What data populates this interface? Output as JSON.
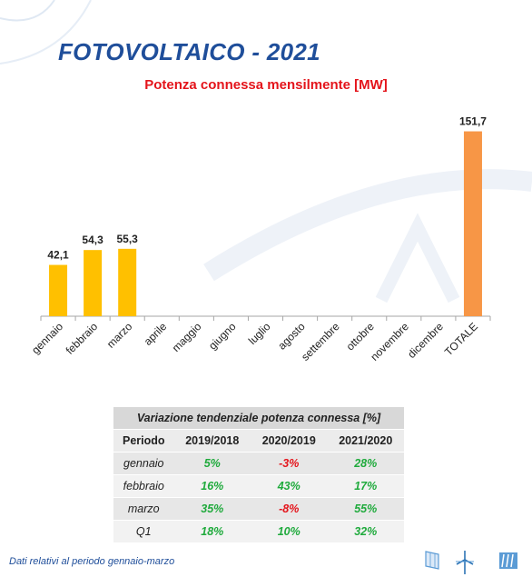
{
  "title": "FOTOVOLTAICO - 2021",
  "subtitle": "Potenza connessa mensilmente [MW]",
  "chart_data": {
    "type": "bar",
    "title": "Potenza connessa mensilmente [MW]",
    "categories": [
      "gennaio",
      "febbraio",
      "marzo",
      "aprile",
      "maggio",
      "giugno",
      "luglio",
      "agosto",
      "settembre",
      "ottobre",
      "novembre",
      "dicembre",
      "TOTALE"
    ],
    "values": [
      42.1,
      54.3,
      55.3,
      null,
      null,
      null,
      null,
      null,
      null,
      null,
      null,
      null,
      151.7
    ],
    "value_labels": [
      "42,1",
      "54,3",
      "55,3",
      "",
      "",
      "",
      "",
      "",
      "",
      "",
      "",
      "",
      "151,7"
    ],
    "ylim": [
      0,
      170
    ],
    "grid": false,
    "legend": "none",
    "colors": {
      "month": "#ffc000",
      "total": "#f79646"
    }
  },
  "table": {
    "caption": "Variazione tendenziale potenza connessa [%]",
    "headers": [
      "Periodo",
      "2019/2018",
      "2020/2019",
      "2021/2020"
    ],
    "rows": [
      {
        "period": "gennaio",
        "values": [
          {
            "text": "5%",
            "sign": "pos"
          },
          {
            "text": "-3%",
            "sign": "neg"
          },
          {
            "text": "28%",
            "sign": "pos"
          }
        ]
      },
      {
        "period": "febbraio",
        "values": [
          {
            "text": "16%",
            "sign": "pos"
          },
          {
            "text": "43%",
            "sign": "pos"
          },
          {
            "text": "17%",
            "sign": "pos"
          }
        ]
      },
      {
        "period": "marzo",
        "values": [
          {
            "text": "35%",
            "sign": "pos"
          },
          {
            "text": "-8%",
            "sign": "neg"
          },
          {
            "text": "55%",
            "sign": "pos"
          }
        ]
      },
      {
        "period": "Q1",
        "values": [
          {
            "text": "18%",
            "sign": "pos"
          },
          {
            "text": "10%",
            "sign": "pos"
          },
          {
            "text": "32%",
            "sign": "pos"
          }
        ]
      }
    ]
  },
  "footer": "Dati relativi al periodo gennaio-marzo",
  "colors": {
    "title": "#1f4e9a",
    "subtitle": "#e4141b",
    "positive": "#1faa3c",
    "negative": "#e4141b"
  },
  "icons": [
    "solar-panel-icon",
    "wind-turbine-icon",
    "hydro-icon"
  ]
}
